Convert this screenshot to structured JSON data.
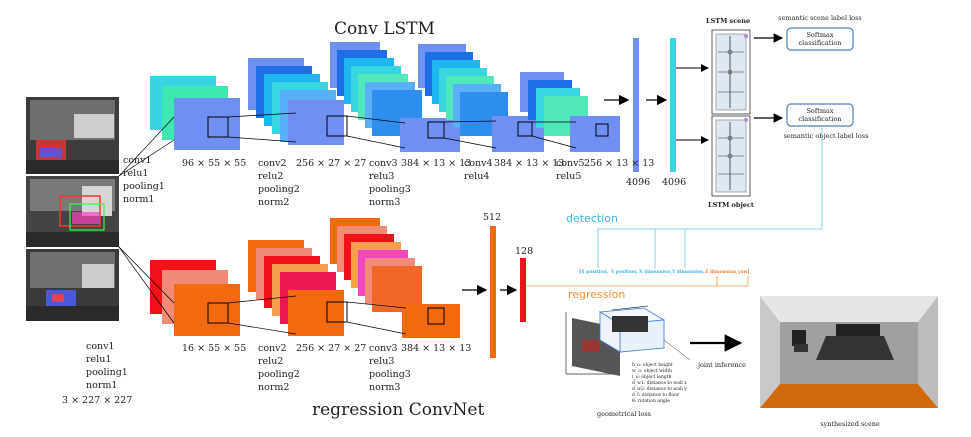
{
  "titles": {
    "conv_lstm": "Conv LSTM",
    "regression_convnet": "regression ConvNet"
  },
  "layers": {
    "input": [
      "conv1",
      "relu1",
      "pooling1",
      "norm1",
      "3 × 227 × 227"
    ],
    "lstm_l1": [
      "conv1",
      "relu1",
      "pooling1",
      "norm1"
    ],
    "lstm_l2": [
      "conv2",
      "relu2",
      "pooling2",
      "norm2"
    ],
    "lstm_l3": [
      "conv3",
      "relu3",
      "pooling3",
      "norm3"
    ],
    "lstm_l4": [
      "conv4",
      "relu4"
    ],
    "lstm_l5": [
      "conv5",
      "relu5"
    ],
    "reg_l2": [
      "conv2",
      "relu2",
      "pooling2",
      "norm2"
    ],
    "reg_l3": [
      "conv3",
      "relu3",
      "pooling3",
      "norm3"
    ]
  },
  "dims": {
    "lstm1": "96 × 55 × 55",
    "lstm2": "256 × 27 × 27",
    "lstm3": "384 × 13 × 13",
    "lstm4": "384 × 13 × 13",
    "lstm5": "256 × 13 × 13",
    "fc_a": "4096",
    "fc_b": "4096",
    "reg1": "16 × 55 × 55",
    "reg2": "256 × 27 × 27",
    "reg3": "384 × 13 × 13",
    "reg_fc1": "512",
    "reg_fc2": "128"
  },
  "lstm": {
    "scene_title": "LSTM scene",
    "object_title": "LSTM object",
    "scene_loss": "semantic scene label loss",
    "object_loss": "semantic object label loss",
    "softmax_line1": "Softmax",
    "softmax_line2": "classification"
  },
  "heads": {
    "detection": "detection",
    "regression": "regression",
    "params": [
      "[X position,",
      "Y position,",
      "X dimension,",
      "Y dimension,",
      "Z dimension,",
      "yaw]"
    ],
    "geometric_loss": "geometrical loss",
    "joint_inference": "joint inference",
    "synthesized_scene": "synthesized scene",
    "legend": [
      "h_o: object height",
      "w_o: object width",
      "l_o: object length",
      "d_w1: distance to wall x",
      "d_w2: distance to wall y",
      "d_f: distance to floor",
      "θ: rotation angle"
    ]
  },
  "colors": {
    "lstm_blue": "#6f8ff3",
    "lstm_cyan": "#37d6e0",
    "reg_orange": "#f36a10",
    "reg_red": "#f01218",
    "detection_line": "#8ad0e6",
    "regression_line": "#f0a868",
    "softmax_border": "#4d7fc4"
  }
}
